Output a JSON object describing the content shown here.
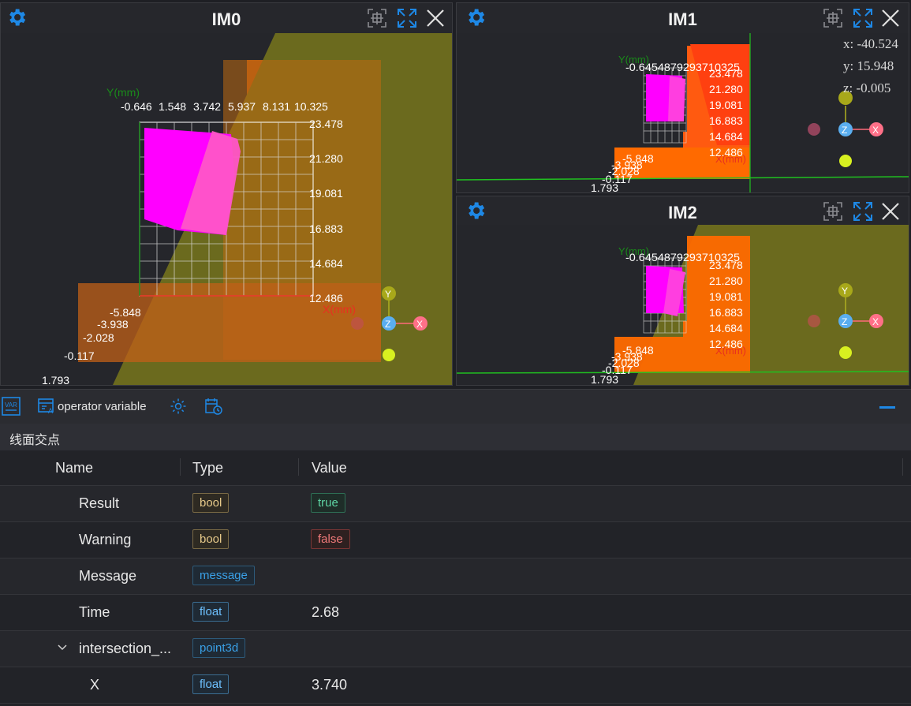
{
  "views": [
    {
      "title": "IM0"
    },
    {
      "title": "IM1"
    },
    {
      "title": "IM2"
    }
  ],
  "im0": {
    "axis_label_y": "Y(mm)",
    "axis_label_x": "X(mm)",
    "x_ticks": [
      "-0.646",
      "1.548",
      "3.742",
      "5.937",
      "8.131",
      "10.325"
    ],
    "y_ticks": [
      "23.478",
      "21.280",
      "19.081",
      "16.883",
      "14.684",
      "12.486"
    ],
    "z_ticks": [
      "-5.848",
      "-3.938",
      "-2.028",
      "-0.117",
      "1.793"
    ],
    "gizmo": {
      "y": "Y",
      "z": "Z",
      "x": "X"
    }
  },
  "im1": {
    "coord_x": "x: -40.524",
    "coord_y": "y: 15.948",
    "coord_z": "z: -0.005",
    "axis_label_y": "Y(mm)",
    "axis_label_x": "X(mm)",
    "x_ticks_overlap": "-0.6454879293710325",
    "y_ticks": [
      "23.478",
      "21.280",
      "19.081",
      "16.883",
      "14.684",
      "12.486"
    ],
    "z_ticks": [
      "-5.848",
      "-3.938",
      "-2.028",
      "-0.117",
      "1.793"
    ],
    "gizmo": {
      "z": "Z",
      "x": "X"
    }
  },
  "im2": {
    "axis_label_y": "Y(mm)",
    "axis_label_x": "X(mm)",
    "x_ticks_overlap": "-0.6454879293710325",
    "y_ticks": [
      "23.478",
      "21.280",
      "19.081",
      "16.883",
      "14.684",
      "12.486"
    ],
    "z_ticks": [
      "-5.848",
      "-3.938",
      "-2.028",
      "-0.117",
      "1.793"
    ],
    "gizmo": {
      "y": "Y",
      "z": "Z",
      "x": "X"
    }
  },
  "toolbar": {
    "operator_variable": "operator variable"
  },
  "section": {
    "title": "线面交点"
  },
  "table": {
    "headers": {
      "name": "Name",
      "type": "Type",
      "value": "Value"
    },
    "rows": [
      {
        "name": "Result",
        "type": "bool",
        "value": "true"
      },
      {
        "name": "Warning",
        "type": "bool",
        "value": "false"
      },
      {
        "name": "Message",
        "type": "message",
        "value": ""
      },
      {
        "name": "Time",
        "type": "float",
        "value": "2.68"
      },
      {
        "name": "intersection_...",
        "type": "point3d",
        "value": ""
      },
      {
        "name": "X",
        "type": "float",
        "value": "3.740"
      }
    ]
  },
  "colors": {
    "accent": "#1e88e5",
    "plane": "#6b6a1e",
    "magenta": "#ff00ff",
    "pointcloud": "#ff6a00"
  }
}
